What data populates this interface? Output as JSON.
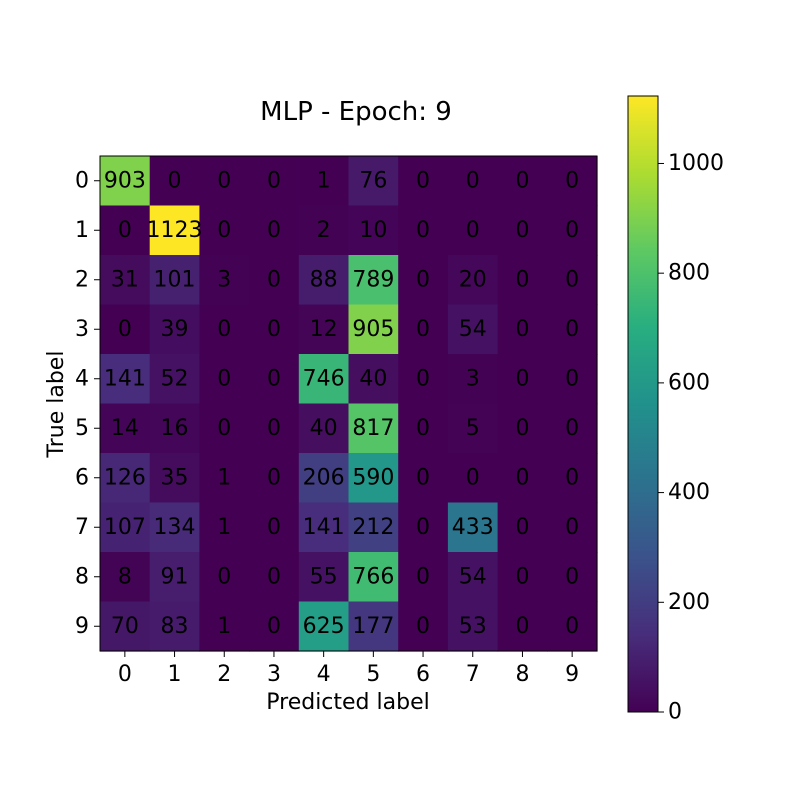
{
  "chart_data": {
    "type": "heatmap",
    "title": "MLP - Epoch: 9",
    "xlabel": "Predicted label",
    "ylabel": "True label",
    "x_ticks": [
      "0",
      "1",
      "2",
      "3",
      "4",
      "5",
      "6",
      "7",
      "8",
      "9"
    ],
    "y_ticks": [
      "0",
      "1",
      "2",
      "3",
      "4",
      "5",
      "6",
      "7",
      "8",
      "9"
    ],
    "matrix": [
      [
        903,
        0,
        0,
        0,
        1,
        76,
        0,
        0,
        0,
        0
      ],
      [
        0,
        1123,
        0,
        0,
        2,
        10,
        0,
        0,
        0,
        0
      ],
      [
        31,
        101,
        3,
        0,
        88,
        789,
        0,
        20,
        0,
        0
      ],
      [
        0,
        39,
        0,
        0,
        12,
        905,
        0,
        54,
        0,
        0
      ],
      [
        141,
        52,
        0,
        0,
        746,
        40,
        0,
        3,
        0,
        0
      ],
      [
        14,
        16,
        0,
        0,
        40,
        817,
        0,
        5,
        0,
        0
      ],
      [
        126,
        35,
        1,
        0,
        206,
        590,
        0,
        0,
        0,
        0
      ],
      [
        107,
        134,
        1,
        0,
        141,
        212,
        0,
        433,
        0,
        0
      ],
      [
        8,
        91,
        0,
        0,
        55,
        766,
        0,
        54,
        0,
        0
      ],
      [
        70,
        83,
        1,
        0,
        625,
        177,
        0,
        53,
        0,
        0
      ]
    ],
    "colormap": "viridis",
    "color_range": [
      0,
      1123
    ],
    "colorbar_ticks": [
      0,
      200,
      400,
      600,
      800,
      1000
    ],
    "light_text_color": "#fde725",
    "dark_text_color": "#440154"
  }
}
